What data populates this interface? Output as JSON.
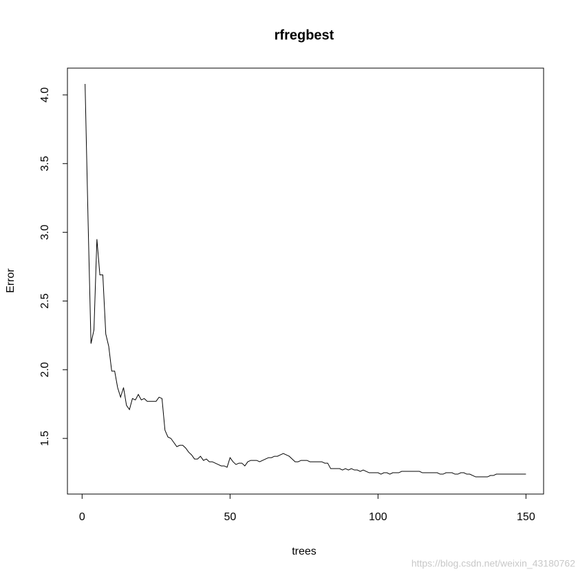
{
  "chart_data": {
    "type": "line",
    "title": "rfregbest",
    "x_label": "trees",
    "y_label": "Error",
    "color": "#000000",
    "x": [
      1,
      2,
      3,
      4,
      5,
      6,
      7,
      8,
      9,
      10,
      11,
      12,
      13,
      14,
      15,
      16,
      17,
      18,
      19,
      20,
      21,
      22,
      23,
      24,
      25,
      26,
      27,
      28,
      29,
      30,
      31,
      32,
      33,
      34,
      35,
      36,
      37,
      38,
      39,
      40,
      41,
      42,
      43,
      44,
      45,
      46,
      47,
      48,
      49,
      50,
      51,
      52,
      53,
      54,
      55,
      56,
      57,
      58,
      59,
      60,
      61,
      62,
      63,
      64,
      65,
      66,
      67,
      68,
      69,
      70,
      71,
      72,
      73,
      74,
      75,
      76,
      77,
      78,
      79,
      80,
      81,
      82,
      83,
      84,
      85,
      86,
      87,
      88,
      89,
      90,
      91,
      92,
      93,
      94,
      95,
      96,
      97,
      98,
      99,
      100,
      101,
      102,
      103,
      104,
      105,
      106,
      107,
      108,
      109,
      110,
      111,
      112,
      113,
      114,
      115,
      116,
      117,
      118,
      119,
      120,
      121,
      122,
      123,
      124,
      125,
      126,
      127,
      128,
      129,
      130,
      131,
      132,
      133,
      134,
      135,
      136,
      137,
      138,
      139,
      140,
      141,
      142,
      143,
      144,
      145,
      146,
      147,
      148,
      149,
      150
    ],
    "values": [
      4.08,
      3.1,
      2.19,
      2.29,
      2.95,
      2.69,
      2.69,
      2.26,
      2.17,
      1.99,
      1.99,
      1.87,
      1.8,
      1.87,
      1.74,
      1.71,
      1.79,
      1.78,
      1.82,
      1.78,
      1.79,
      1.77,
      1.77,
      1.77,
      1.77,
      1.8,
      1.79,
      1.56,
      1.51,
      1.5,
      1.47,
      1.44,
      1.45,
      1.45,
      1.43,
      1.4,
      1.38,
      1.35,
      1.35,
      1.37,
      1.34,
      1.35,
      1.33,
      1.33,
      1.32,
      1.31,
      1.3,
      1.3,
      1.29,
      1.36,
      1.33,
      1.31,
      1.32,
      1.32,
      1.3,
      1.33,
      1.34,
      1.34,
      1.34,
      1.33,
      1.34,
      1.35,
      1.36,
      1.36,
      1.37,
      1.37,
      1.38,
      1.39,
      1.38,
      1.37,
      1.35,
      1.33,
      1.33,
      1.34,
      1.34,
      1.34,
      1.33,
      1.33,
      1.33,
      1.33,
      1.33,
      1.32,
      1.32,
      1.28,
      1.28,
      1.28,
      1.28,
      1.27,
      1.28,
      1.27,
      1.28,
      1.27,
      1.27,
      1.26,
      1.27,
      1.26,
      1.25,
      1.25,
      1.25,
      1.25,
      1.24,
      1.25,
      1.25,
      1.24,
      1.25,
      1.25,
      1.25,
      1.26,
      1.26,
      1.26,
      1.26,
      1.26,
      1.26,
      1.26,
      1.25,
      1.25,
      1.25,
      1.25,
      1.25,
      1.25,
      1.24,
      1.24,
      1.25,
      1.25,
      1.25,
      1.24,
      1.24,
      1.25,
      1.25,
      1.24,
      1.24,
      1.23,
      1.22,
      1.22,
      1.22,
      1.22,
      1.22,
      1.23,
      1.23,
      1.24,
      1.24,
      1.24,
      1.24,
      1.24,
      1.24,
      1.24,
      1.24,
      1.24,
      1.24,
      1.24
    ],
    "xlim": [
      -4.96,
      155.96
    ],
    "ylim": [
      1.095,
      4.195
    ],
    "xticks": [
      0,
      50,
      100,
      150
    ],
    "yticks": [
      1.5,
      {
        "value": 2,
        "label": "2.0"
      },
      2.5,
      {
        "value": 3,
        "label": "3.0"
      },
      3.5,
      {
        "value": 4,
        "label": "4.0"
      }
    ],
    "watermark": "https://blog.csdn.net/weixin_43180762"
  }
}
